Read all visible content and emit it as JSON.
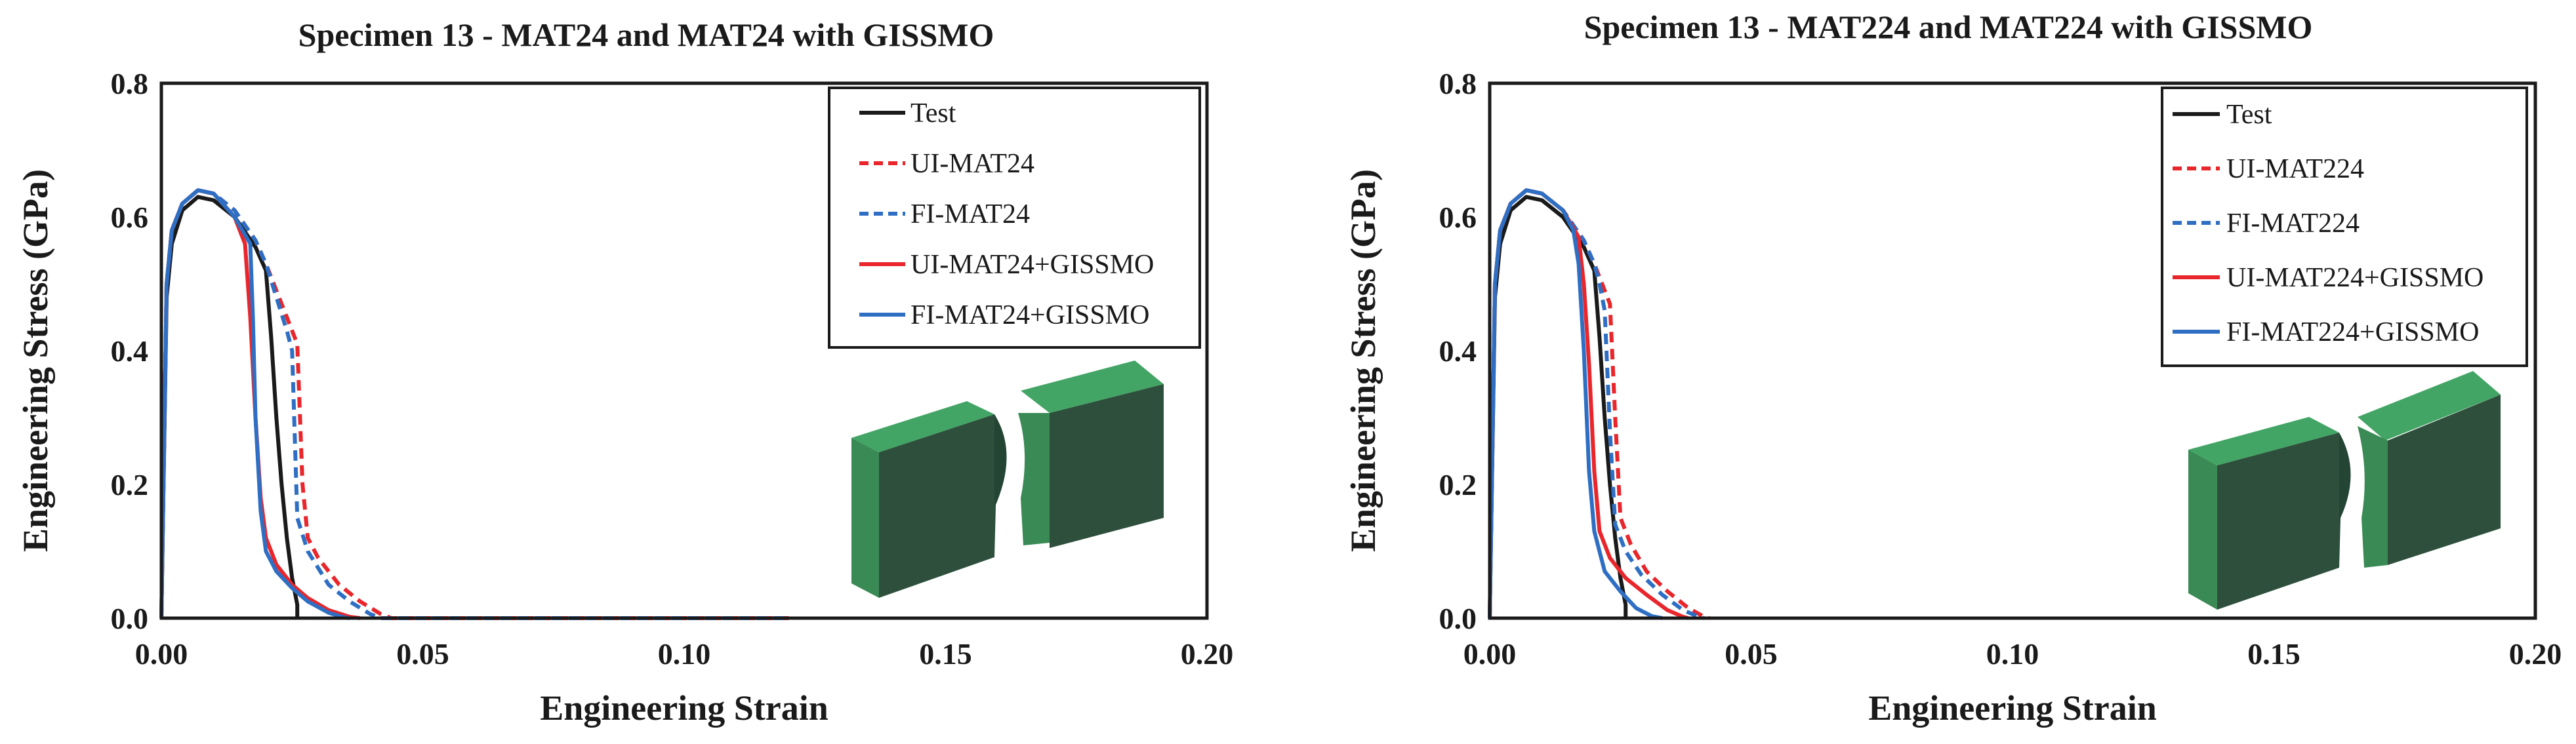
{
  "chart_data": [
    {
      "type": "line",
      "title": "Specimen 13 - MAT24 and MAT24 with GISSMO",
      "xlabel": "Engineering Strain",
      "ylabel": "Engineering Stress (GPa)",
      "xlim": [
        0,
        0.2
      ],
      "ylim": [
        0,
        0.8
      ],
      "xticks": [
        0,
        0.05,
        0.1,
        0.15,
        0.2
      ],
      "xtick_labels": [
        "0.00",
        "0.05",
        "0.10",
        "0.15",
        "0.20"
      ],
      "yticks": [
        0,
        0.2,
        0.4,
        0.6,
        0.8
      ],
      "ytick_labels": [
        "0.0",
        "0.2",
        "0.4",
        "0.6",
        "0.8"
      ],
      "grid": false,
      "legend_position": "top-right",
      "series": [
        {
          "name": "Test",
          "color": "#1a1a1a",
          "dash": "solid",
          "x": [
            0,
            0.001,
            0.002,
            0.004,
            0.007,
            0.01,
            0.014,
            0.018,
            0.02,
            0.021,
            0.022,
            0.023,
            0.024,
            0.025,
            0.026,
            0.026
          ],
          "y": [
            0,
            0.48,
            0.56,
            0.61,
            0.63,
            0.625,
            0.6,
            0.555,
            0.52,
            0.42,
            0.3,
            0.2,
            0.12,
            0.06,
            0.02,
            0.0
          ]
        },
        {
          "name": "UI-MAT24",
          "color": "#e8262b",
          "dash": "dashed",
          "x": [
            0,
            0.001,
            0.002,
            0.004,
            0.007,
            0.01,
            0.014,
            0.018,
            0.02,
            0.022,
            0.024,
            0.026,
            0.027,
            0.028,
            0.03,
            0.034,
            0.038,
            0.042,
            0.044,
            0.06,
            0.08,
            0.1,
            0.12
          ],
          "y": [
            0,
            0.5,
            0.58,
            0.62,
            0.64,
            0.635,
            0.61,
            0.565,
            0.53,
            0.49,
            0.45,
            0.41,
            0.2,
            0.12,
            0.09,
            0.05,
            0.025,
            0.006,
            0.0,
            0.0,
            0.0,
            0.0,
            0.0
          ]
        },
        {
          "name": "FI-MAT24",
          "color": "#2e6fc4",
          "dash": "dashed",
          "x": [
            0,
            0.001,
            0.002,
            0.004,
            0.007,
            0.01,
            0.014,
            0.018,
            0.02,
            0.022,
            0.024,
            0.025,
            0.026,
            0.028,
            0.032,
            0.036,
            0.04,
            0.042,
            0.06,
            0.08,
            0.1,
            0.12
          ],
          "y": [
            0,
            0.5,
            0.58,
            0.62,
            0.64,
            0.635,
            0.61,
            0.565,
            0.53,
            0.48,
            0.43,
            0.4,
            0.15,
            0.1,
            0.05,
            0.025,
            0.006,
            0.0,
            0.0,
            0.0,
            0.0,
            0.0
          ]
        },
        {
          "name": "UI-MAT24+GISSMO",
          "color": "#e8262b",
          "dash": "solid",
          "x": [
            0,
            0.001,
            0.002,
            0.004,
            0.007,
            0.01,
            0.014,
            0.016,
            0.017,
            0.018,
            0.019,
            0.02,
            0.022,
            0.025,
            0.028,
            0.032,
            0.036,
            0.038
          ],
          "y": [
            0,
            0.5,
            0.58,
            0.62,
            0.64,
            0.635,
            0.6,
            0.56,
            0.45,
            0.3,
            0.18,
            0.12,
            0.08,
            0.05,
            0.03,
            0.012,
            0.002,
            0.0
          ]
        },
        {
          "name": "FI-MAT24+GISSMO",
          "color": "#2e6fc4",
          "dash": "solid",
          "x": [
            0,
            0.001,
            0.002,
            0.004,
            0.007,
            0.01,
            0.014,
            0.017,
            0.0175,
            0.018,
            0.019,
            0.02,
            0.022,
            0.025,
            0.028,
            0.032,
            0.035,
            0.036
          ],
          "y": [
            0,
            0.5,
            0.58,
            0.62,
            0.64,
            0.635,
            0.6,
            0.56,
            0.45,
            0.3,
            0.16,
            0.1,
            0.07,
            0.045,
            0.025,
            0.008,
            0.001,
            0.0
          ]
        }
      ]
    },
    {
      "type": "line",
      "title": "Specimen 13 - MAT224 and MAT224 with GISSMO",
      "xlabel": "Engineering Strain",
      "ylabel": "Engineering Stress (GPa)",
      "xlim": [
        0,
        0.2
      ],
      "ylim": [
        0,
        0.8
      ],
      "xticks": [
        0,
        0.05,
        0.1,
        0.15,
        0.2
      ],
      "xtick_labels": [
        "0.00",
        "0.05",
        "0.10",
        "0.15",
        "0.20"
      ],
      "yticks": [
        0,
        0.2,
        0.4,
        0.6,
        0.8
      ],
      "ytick_labels": [
        "0.0",
        "0.2",
        "0.4",
        "0.6",
        "0.8"
      ],
      "grid": false,
      "legend_position": "top-right",
      "series": [
        {
          "name": "Test",
          "color": "#1a1a1a",
          "dash": "solid",
          "x": [
            0,
            0.001,
            0.002,
            0.004,
            0.007,
            0.01,
            0.014,
            0.018,
            0.02,
            0.021,
            0.022,
            0.023,
            0.024,
            0.025,
            0.026,
            0.026
          ],
          "y": [
            0,
            0.48,
            0.56,
            0.61,
            0.63,
            0.625,
            0.6,
            0.555,
            0.52,
            0.42,
            0.3,
            0.2,
            0.12,
            0.06,
            0.02,
            0.0
          ]
        },
        {
          "name": "UI-MAT224",
          "color": "#e8262b",
          "dash": "dashed",
          "x": [
            0,
            0.001,
            0.002,
            0.004,
            0.007,
            0.01,
            0.014,
            0.018,
            0.02,
            0.022,
            0.023,
            0.024,
            0.025,
            0.027,
            0.03,
            0.034,
            0.038,
            0.041,
            0.042
          ],
          "y": [
            0,
            0.5,
            0.58,
            0.62,
            0.64,
            0.635,
            0.61,
            0.565,
            0.53,
            0.49,
            0.47,
            0.3,
            0.15,
            0.11,
            0.07,
            0.04,
            0.015,
            0.002,
            0.0
          ]
        },
        {
          "name": "FI-MAT224",
          "color": "#2e6fc4",
          "dash": "dashed",
          "x": [
            0,
            0.001,
            0.002,
            0.004,
            0.007,
            0.01,
            0.014,
            0.018,
            0.02,
            0.021,
            0.022,
            0.023,
            0.024,
            0.026,
            0.029,
            0.033,
            0.037,
            0.04,
            0.041
          ],
          "y": [
            0,
            0.5,
            0.58,
            0.62,
            0.64,
            0.635,
            0.61,
            0.565,
            0.53,
            0.5,
            0.46,
            0.28,
            0.14,
            0.1,
            0.065,
            0.035,
            0.012,
            0.002,
            0.0
          ]
        },
        {
          "name": "UI-MAT224+GISSMO",
          "color": "#e8262b",
          "dash": "solid",
          "x": [
            0,
            0.001,
            0.002,
            0.004,
            0.007,
            0.01,
            0.014,
            0.017,
            0.018,
            0.019,
            0.02,
            0.021,
            0.023,
            0.026,
            0.03,
            0.034,
            0.037,
            0.038
          ],
          "y": [
            0,
            0.5,
            0.58,
            0.62,
            0.64,
            0.635,
            0.61,
            0.57,
            0.5,
            0.38,
            0.22,
            0.13,
            0.09,
            0.06,
            0.035,
            0.012,
            0.002,
            0.0
          ]
        },
        {
          "name": "FI-MAT224+GISSMO",
          "color": "#2e6fc4",
          "dash": "solid",
          "x": [
            0,
            0.001,
            0.002,
            0.004,
            0.007,
            0.01,
            0.014,
            0.016,
            0.017,
            0.018,
            0.019,
            0.02,
            0.022,
            0.025,
            0.028,
            0.031,
            0.033
          ],
          "y": [
            0,
            0.5,
            0.58,
            0.62,
            0.64,
            0.635,
            0.61,
            0.58,
            0.53,
            0.4,
            0.22,
            0.13,
            0.07,
            0.04,
            0.015,
            0.003,
            0.0
          ]
        }
      ]
    }
  ],
  "colors": {
    "specimen_front": "#2d4f3c",
    "specimen_top": "#43a565",
    "specimen_side": "#3a8a55",
    "specimen_notch": "#244534"
  }
}
